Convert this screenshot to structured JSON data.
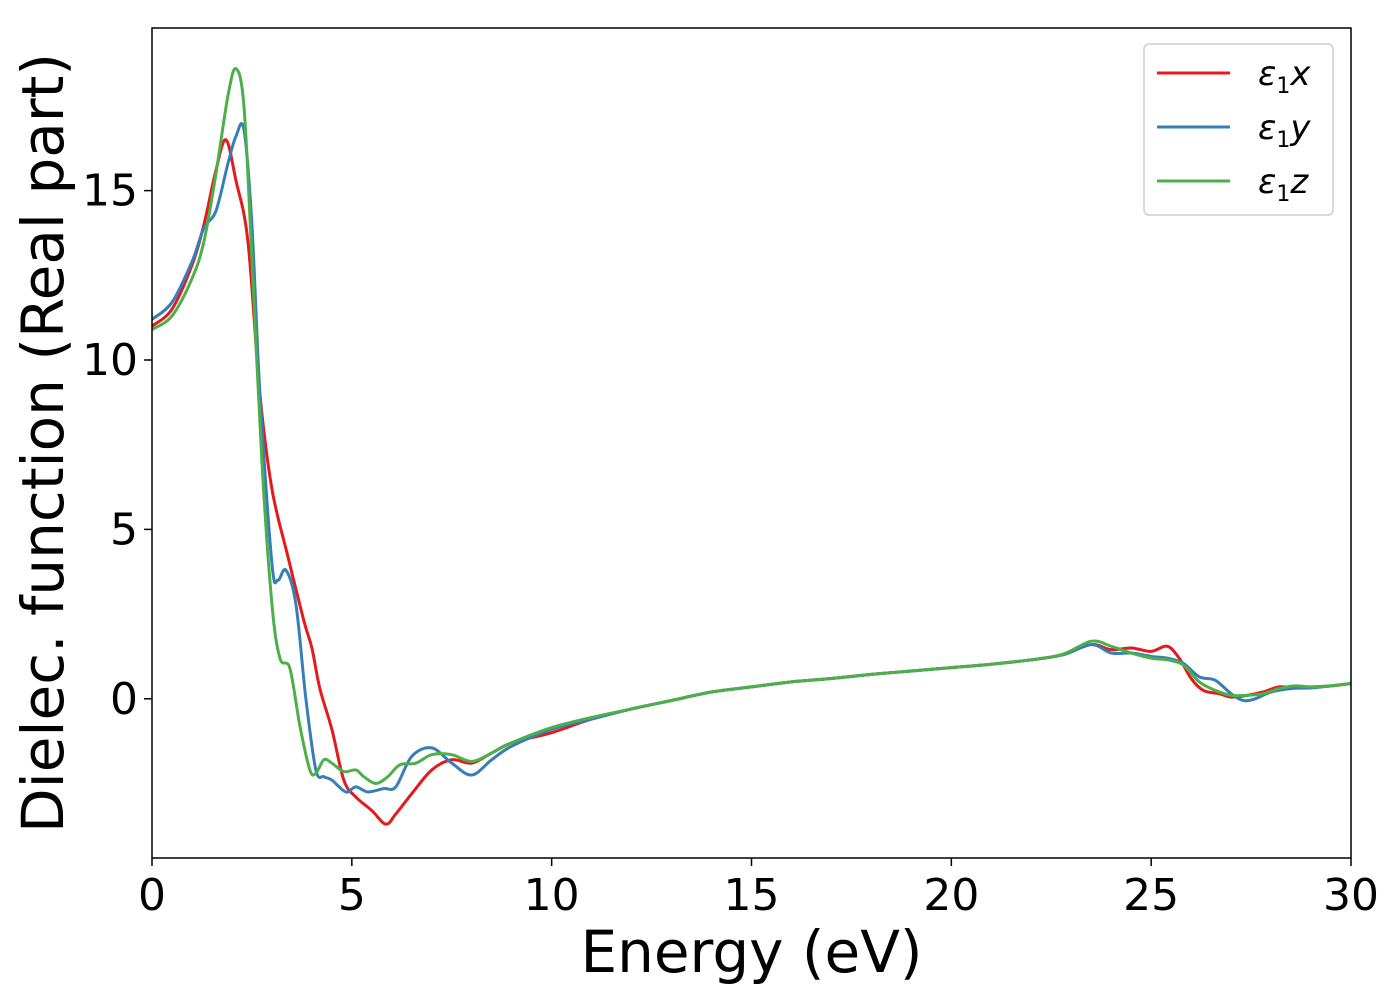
{
  "chart_data": {
    "type": "line",
    "xlabel": "Energy (eV)",
    "ylabel": "Dielec. function (Real part)",
    "xlim": [
      0,
      30
    ],
    "ylim": [
      -4.7,
      19.8
    ],
    "xticks": [
      0,
      5,
      10,
      15,
      20,
      25,
      30
    ],
    "yticks": [
      0,
      5,
      10,
      15
    ],
    "grid": false,
    "legend_position": "top-right",
    "series": [
      {
        "name": "ε1x",
        "legend": {
          "base": "ε",
          "sub": "1",
          "tail": "x"
        },
        "color": "#e41a1c",
        "x": [
          0,
          0.5,
          1.0,
          1.3,
          1.6,
          1.85,
          2.1,
          2.4,
          2.7,
          3.0,
          3.4,
          3.8,
          4.0,
          4.2,
          4.5,
          4.8,
          5.1,
          5.5,
          5.85,
          6.1,
          6.5,
          7.0,
          7.5,
          8.0,
          8.5,
          9.0,
          10.0,
          11.0,
          12.0,
          13.0,
          14.0,
          15.0,
          16.0,
          17.0,
          18.0,
          19.0,
          20.0,
          21.0,
          22.0,
          22.8,
          23.5,
          24.0,
          24.5,
          25.0,
          25.4,
          25.7,
          26.0,
          26.3,
          26.7,
          27.0,
          27.4,
          27.8,
          28.2,
          28.6,
          29.0,
          29.5,
          30.0
        ],
        "y": [
          11.0,
          11.5,
          12.8,
          14.0,
          15.6,
          16.5,
          15.3,
          13.5,
          9.0,
          6.2,
          4.2,
          2.3,
          1.5,
          0.3,
          -0.9,
          -2.4,
          -2.9,
          -3.3,
          -3.7,
          -3.4,
          -2.8,
          -2.1,
          -1.8,
          -1.9,
          -1.6,
          -1.3,
          -1.0,
          -0.6,
          -0.3,
          -0.05,
          0.2,
          0.35,
          0.5,
          0.6,
          0.72,
          0.82,
          0.92,
          1.02,
          1.15,
          1.3,
          1.6,
          1.45,
          1.5,
          1.4,
          1.55,
          1.2,
          0.6,
          0.25,
          0.15,
          0.05,
          0.1,
          0.2,
          0.35,
          0.32,
          0.35,
          0.38,
          0.45
        ]
      },
      {
        "name": "ε1y",
        "legend": {
          "base": "ε",
          "sub": "1",
          "tail": "y"
        },
        "color": "#377eb8",
        "x": [
          0,
          0.5,
          1.0,
          1.3,
          1.6,
          1.9,
          2.1,
          2.3,
          2.5,
          2.7,
          3.0,
          3.15,
          3.35,
          3.6,
          3.85,
          4.1,
          4.3,
          4.5,
          4.85,
          5.1,
          5.4,
          5.8,
          6.1,
          6.5,
          7.0,
          7.5,
          8.0,
          8.5,
          9.0,
          10.0,
          11.0,
          12.0,
          13.0,
          14.0,
          15.0,
          16.0,
          17.0,
          18.0,
          19.0,
          20.0,
          21.0,
          22.0,
          22.8,
          23.5,
          24.0,
          24.5,
          25.0,
          25.4,
          25.8,
          26.2,
          26.6,
          27.0,
          27.3,
          27.6,
          28.0,
          28.5,
          29.0,
          29.5,
          30.0
        ],
        "y": [
          11.2,
          11.7,
          12.9,
          13.9,
          14.4,
          15.8,
          16.6,
          16.8,
          14.0,
          9.0,
          4.0,
          3.5,
          3.8,
          2.8,
          0.0,
          -2.1,
          -2.3,
          -2.4,
          -2.75,
          -2.6,
          -2.75,
          -2.65,
          -2.6,
          -1.7,
          -1.45,
          -1.9,
          -2.25,
          -1.8,
          -1.4,
          -0.9,
          -0.6,
          -0.3,
          -0.05,
          0.2,
          0.35,
          0.5,
          0.6,
          0.72,
          0.82,
          0.92,
          1.02,
          1.15,
          1.3,
          1.6,
          1.35,
          1.35,
          1.25,
          1.2,
          1.05,
          0.65,
          0.55,
          0.15,
          -0.05,
          0.0,
          0.2,
          0.3,
          0.32,
          0.38,
          0.45
        ]
      },
      {
        "name": "ε1z",
        "legend": {
          "base": "ε",
          "sub": "1",
          "tail": "z"
        },
        "color": "#4daf4a",
        "x": [
          0,
          0.5,
          1.0,
          1.3,
          1.6,
          1.9,
          2.1,
          2.3,
          2.5,
          2.75,
          3.0,
          3.2,
          3.45,
          3.7,
          3.95,
          4.1,
          4.3,
          4.5,
          4.8,
          5.1,
          5.3,
          5.6,
          5.9,
          6.2,
          6.6,
          7.0,
          7.5,
          8.0,
          8.5,
          9.0,
          10.0,
          11.0,
          12.0,
          13.0,
          14.0,
          15.0,
          16.0,
          17.0,
          18.0,
          19.0,
          20.0,
          21.0,
          22.0,
          22.8,
          23.5,
          24.0,
          24.5,
          25.0,
          25.4,
          25.8,
          26.2,
          26.6,
          27.0,
          27.4,
          27.8,
          28.2,
          28.6,
          29.0,
          29.5,
          30.0
        ],
        "y": [
          10.9,
          11.3,
          12.4,
          13.5,
          15.5,
          17.8,
          18.6,
          17.5,
          13.0,
          7.0,
          2.8,
          1.2,
          0.9,
          -0.8,
          -2.1,
          -2.2,
          -1.8,
          -1.9,
          -2.15,
          -2.1,
          -2.3,
          -2.5,
          -2.3,
          -1.95,
          -1.9,
          -1.65,
          -1.65,
          -1.85,
          -1.6,
          -1.3,
          -0.85,
          -0.55,
          -0.3,
          -0.05,
          0.2,
          0.35,
          0.5,
          0.6,
          0.72,
          0.82,
          0.92,
          1.02,
          1.15,
          1.32,
          1.7,
          1.55,
          1.35,
          1.2,
          1.15,
          1.0,
          0.5,
          0.25,
          0.1,
          0.1,
          0.15,
          0.3,
          0.38,
          0.35,
          0.38,
          0.45
        ]
      }
    ]
  }
}
